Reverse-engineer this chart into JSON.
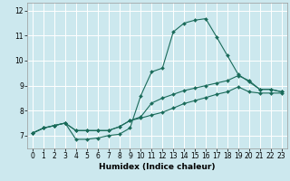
{
  "title": "",
  "xlabel": "Humidex (Indice chaleur)",
  "ylabel": "",
  "xlim": [
    -0.5,
    23.5
  ],
  "ylim": [
    6.5,
    12.3
  ],
  "xticks": [
    0,
    1,
    2,
    3,
    4,
    5,
    6,
    7,
    8,
    9,
    10,
    11,
    12,
    13,
    14,
    15,
    16,
    17,
    18,
    19,
    20,
    21,
    22,
    23
  ],
  "yticks": [
    7,
    8,
    9,
    10,
    11,
    12
  ],
  "background_color": "#cce8ee",
  "grid_color": "#ffffff",
  "line_color": "#1a6b5a",
  "lines": [
    {
      "x": [
        0,
        1,
        2,
        3,
        4,
        5,
        6,
        7,
        8,
        9,
        10,
        11,
        12,
        13,
        14,
        15,
        16,
        17,
        18,
        19,
        20,
        21,
        22,
        23
      ],
      "y": [
        7.1,
        7.3,
        7.4,
        7.5,
        6.85,
        6.85,
        6.9,
        7.0,
        7.05,
        7.3,
        8.6,
        9.55,
        9.7,
        11.15,
        11.5,
        11.62,
        11.68,
        10.95,
        10.2,
        9.45,
        9.15,
        8.85,
        8.85,
        8.75
      ]
    },
    {
      "x": [
        0,
        1,
        2,
        3,
        4,
        5,
        6,
        7,
        8,
        9,
        10,
        11,
        12,
        13,
        14,
        15,
        16,
        17,
        18,
        19,
        20,
        21,
        22,
        23
      ],
      "y": [
        7.1,
        7.3,
        7.4,
        7.5,
        7.2,
        7.2,
        7.2,
        7.2,
        7.35,
        7.6,
        7.75,
        8.3,
        8.5,
        8.65,
        8.8,
        8.9,
        9.0,
        9.1,
        9.2,
        9.4,
        9.2,
        8.85,
        8.85,
        8.75
      ]
    },
    {
      "x": [
        0,
        1,
        2,
        3,
        4,
        5,
        6,
        7,
        8,
        9,
        10,
        11,
        12,
        13,
        14,
        15,
        16,
        17,
        18,
        19,
        20,
        21,
        22,
        23
      ],
      "y": [
        7.1,
        7.3,
        7.4,
        7.5,
        7.2,
        7.2,
        7.2,
        7.2,
        7.35,
        7.6,
        7.7,
        7.82,
        7.93,
        8.1,
        8.28,
        8.4,
        8.52,
        8.65,
        8.75,
        8.95,
        8.75,
        8.7,
        8.7,
        8.7
      ]
    }
  ]
}
